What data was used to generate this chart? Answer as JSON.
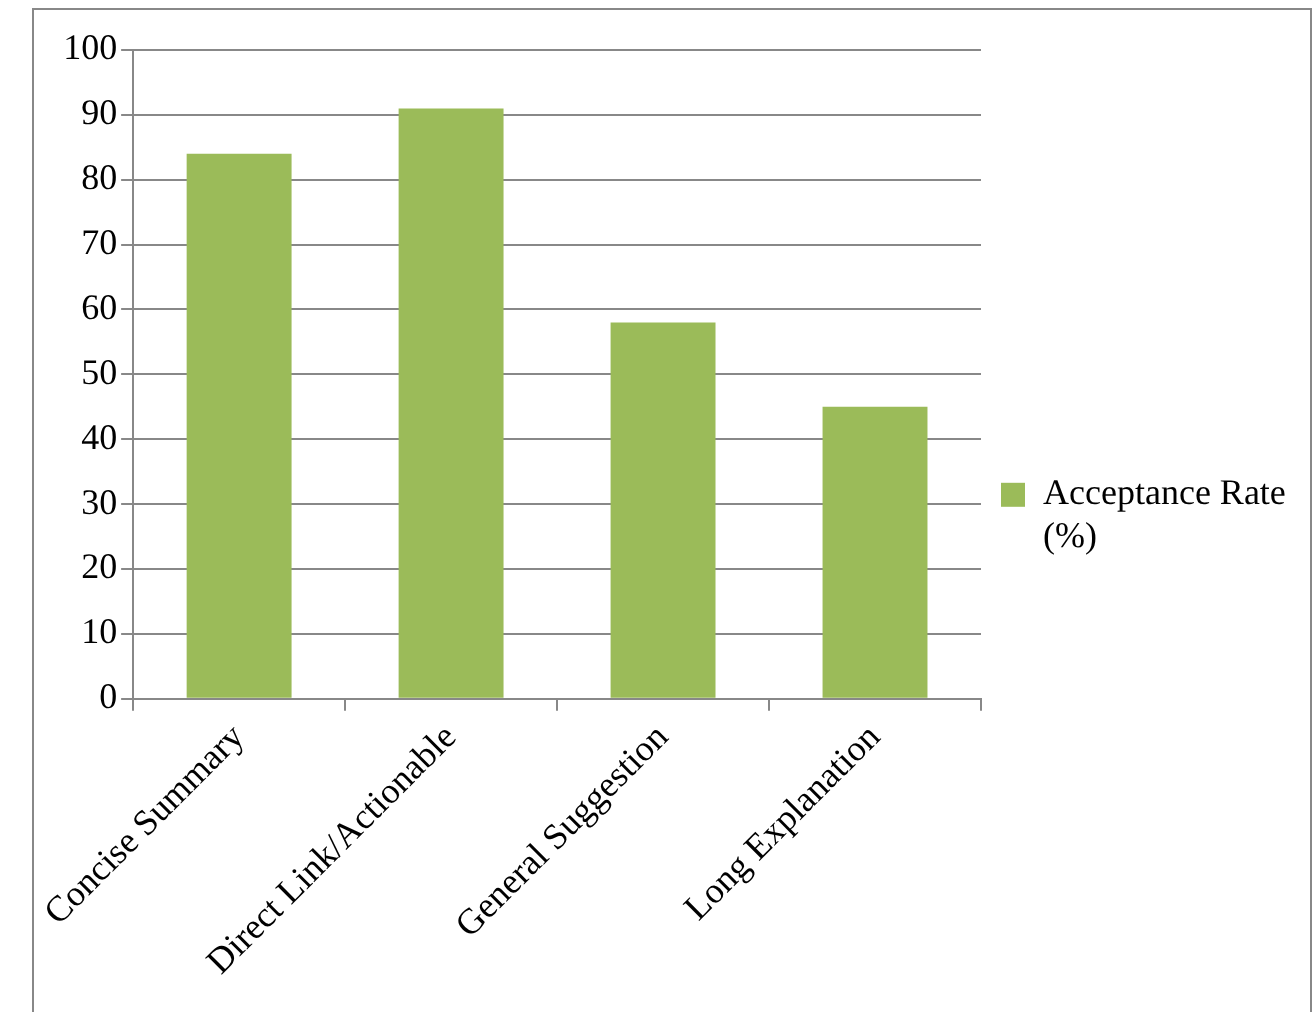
{
  "chart_data": {
    "type": "bar",
    "categories": [
      "Concise Summary",
      "Direct Link/Actionable",
      "General Suggestion",
      "Long Explanation"
    ],
    "series": [
      {
        "name": "Acceptance Rate (%)",
        "color": "#9bbb59",
        "values": [
          84,
          91,
          58,
          45
        ]
      }
    ],
    "ylim": [
      0,
      100
    ],
    "yticks": [
      0,
      10,
      20,
      30,
      40,
      50,
      60,
      70,
      80,
      90,
      100
    ],
    "grid": "y",
    "legend": "right"
  }
}
